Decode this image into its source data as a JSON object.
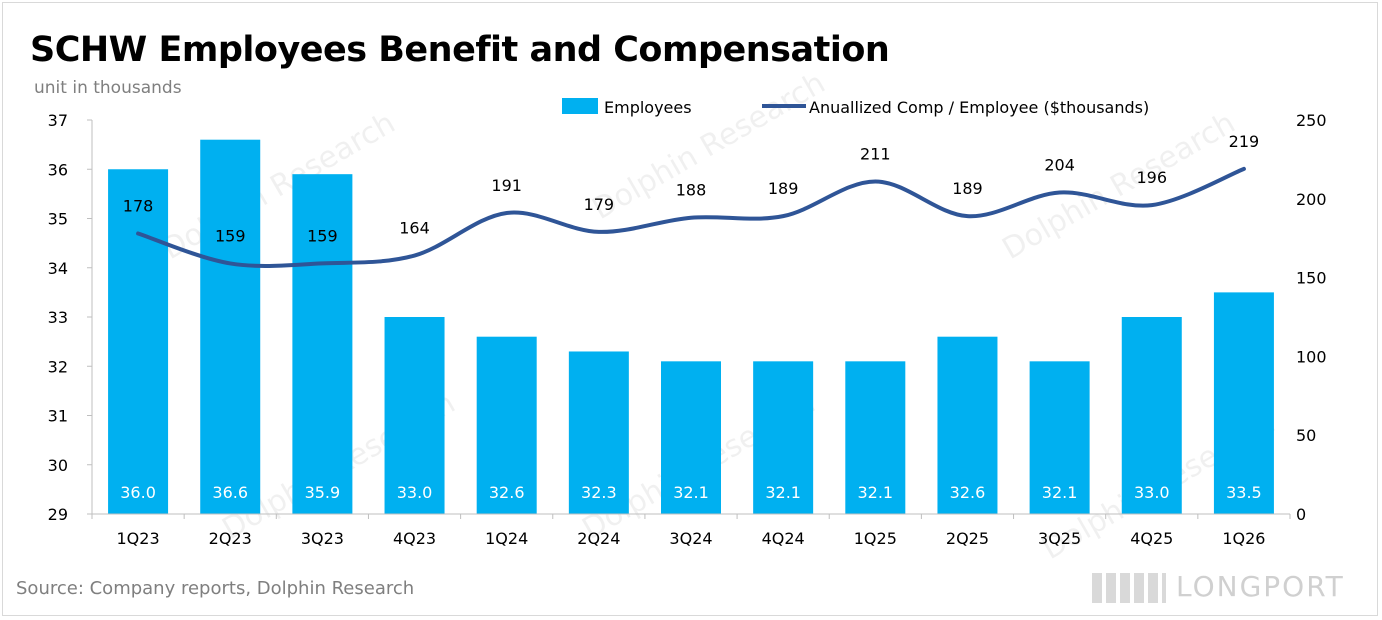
{
  "chart_data": {
    "type": "bar",
    "title": "SCHW Employees Benefit and Compensation",
    "subtitle": "unit in thousands",
    "source": "Source: Company reports, Dolphin Research",
    "categories": [
      "1Q23",
      "2Q23",
      "3Q23",
      "4Q23",
      "1Q24",
      "2Q24",
      "3Q24",
      "4Q24",
      "1Q25",
      "2Q25",
      "3Q25",
      "4Q25",
      "1Q26"
    ],
    "series": [
      {
        "name": "Employees",
        "type": "bar",
        "axis": "left",
        "color": "#00b0f0",
        "values": [
          36.0,
          36.6,
          35.9,
          33.0,
          32.6,
          32.3,
          32.1,
          32.1,
          32.1,
          32.6,
          32.1,
          33.0,
          33.5
        ],
        "labels": [
          "36.0",
          "36.6",
          "35.9",
          "33.0",
          "32.6",
          "32.3",
          "32.1",
          "32.1",
          "32.1",
          "32.6",
          "32.1",
          "33.0",
          "33.5"
        ]
      },
      {
        "name": "Anuallized Comp / Employee ($thousands)",
        "type": "line",
        "axis": "right",
        "color": "#2f5597",
        "values": [
          178,
          159,
          159,
          164,
          191,
          179,
          188,
          189,
          211,
          189,
          204,
          196,
          219
        ],
        "labels": [
          "178",
          "159",
          "159",
          "164",
          "191",
          "179",
          "188",
          "189",
          "211",
          "189",
          "204",
          "196",
          "219"
        ]
      }
    ],
    "y_left": {
      "min": 29,
      "max": 37,
      "ticks": [
        "29",
        "30",
        "31",
        "32",
        "33",
        "34",
        "35",
        "36",
        "37"
      ]
    },
    "y_right": {
      "min": 0,
      "max": 250,
      "ticks": [
        "0",
        "50",
        "100",
        "150",
        "200",
        "250"
      ]
    },
    "legend_position": "top-center",
    "grid": false
  },
  "watermark": "Dolphin Research",
  "brand": "LONGPORT"
}
